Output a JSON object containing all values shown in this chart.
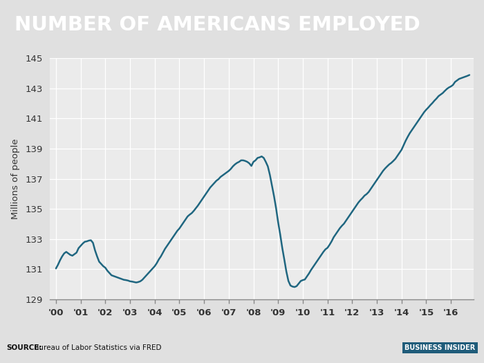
{
  "title": "NUMBER OF AMERICANS EMPLOYED",
  "ylabel": "Millions of people",
  "source_label": "SOURCE:",
  "source_text": " Bureau of Labor Statistics via FRED",
  "watermark": "BUSINESS INSIDER",
  "title_bg_color": "#21708a",
  "title_text_color": "#ffffff",
  "line_color": "#1f6680",
  "bg_color": "#e0e0e0",
  "plot_bg_color": "#ebebeb",
  "footer_bg_color": "#cccccc",
  "grid_color": "#ffffff",
  "xlim": [
    1999.75,
    2016.92
  ],
  "ylim": [
    129,
    145
  ],
  "yticks": [
    129,
    131,
    133,
    135,
    137,
    139,
    141,
    143,
    145
  ],
  "xtick_labels": [
    "'00",
    "'01",
    "'02",
    "'03",
    "'04",
    "'05",
    "'06",
    "'07",
    "'08",
    "'09",
    "'10",
    "'11",
    "'12",
    "'13",
    "'14",
    "'15",
    "'16"
  ],
  "xtick_positions": [
    2000,
    2001,
    2002,
    2003,
    2004,
    2005,
    2006,
    2007,
    2008,
    2009,
    2010,
    2011,
    2012,
    2013,
    2014,
    2015,
    2016
  ],
  "data_x": [
    2000.0,
    2000.083,
    2000.167,
    2000.25,
    2000.333,
    2000.417,
    2000.5,
    2000.583,
    2000.667,
    2000.75,
    2000.833,
    2000.917,
    2001.0,
    2001.083,
    2001.167,
    2001.25,
    2001.333,
    2001.417,
    2001.5,
    2001.583,
    2001.667,
    2001.75,
    2001.833,
    2001.917,
    2002.0,
    2002.083,
    2002.167,
    2002.25,
    2002.333,
    2002.417,
    2002.5,
    2002.583,
    2002.667,
    2002.75,
    2002.833,
    2002.917,
    2003.0,
    2003.083,
    2003.167,
    2003.25,
    2003.333,
    2003.417,
    2003.5,
    2003.583,
    2003.667,
    2003.75,
    2003.833,
    2003.917,
    2004.0,
    2004.083,
    2004.167,
    2004.25,
    2004.333,
    2004.417,
    2004.5,
    2004.583,
    2004.667,
    2004.75,
    2004.833,
    2004.917,
    2005.0,
    2005.083,
    2005.167,
    2005.25,
    2005.333,
    2005.417,
    2005.5,
    2005.583,
    2005.667,
    2005.75,
    2005.833,
    2005.917,
    2006.0,
    2006.083,
    2006.167,
    2006.25,
    2006.333,
    2006.417,
    2006.5,
    2006.583,
    2006.667,
    2006.75,
    2006.833,
    2006.917,
    2007.0,
    2007.083,
    2007.167,
    2007.25,
    2007.333,
    2007.417,
    2007.5,
    2007.583,
    2007.667,
    2007.75,
    2007.833,
    2007.917,
    2008.0,
    2008.083,
    2008.167,
    2008.25,
    2008.333,
    2008.417,
    2008.5,
    2008.583,
    2008.667,
    2008.75,
    2008.833,
    2008.917,
    2009.0,
    2009.083,
    2009.167,
    2009.25,
    2009.333,
    2009.417,
    2009.5,
    2009.583,
    2009.667,
    2009.75,
    2009.833,
    2009.917,
    2010.0,
    2010.083,
    2010.167,
    2010.25,
    2010.333,
    2010.417,
    2010.5,
    2010.583,
    2010.667,
    2010.75,
    2010.833,
    2010.917,
    2011.0,
    2011.083,
    2011.167,
    2011.25,
    2011.333,
    2011.417,
    2011.5,
    2011.583,
    2011.667,
    2011.75,
    2011.833,
    2011.917,
    2012.0,
    2012.083,
    2012.167,
    2012.25,
    2012.333,
    2012.417,
    2012.5,
    2012.583,
    2012.667,
    2012.75,
    2012.833,
    2012.917,
    2013.0,
    2013.083,
    2013.167,
    2013.25,
    2013.333,
    2013.417,
    2013.5,
    2013.583,
    2013.667,
    2013.75,
    2013.833,
    2013.917,
    2014.0,
    2014.083,
    2014.167,
    2014.25,
    2014.333,
    2014.417,
    2014.5,
    2014.583,
    2014.667,
    2014.75,
    2014.833,
    2014.917,
    2015.0,
    2015.083,
    2015.167,
    2015.25,
    2015.333,
    2015.417,
    2015.5,
    2015.583,
    2015.667,
    2015.75,
    2015.833,
    2015.917,
    2016.0,
    2016.083,
    2016.167,
    2016.25,
    2016.333,
    2016.417,
    2016.5,
    2016.583,
    2016.667,
    2016.75
  ],
  "data_y": [
    131.05,
    131.3,
    131.6,
    131.85,
    132.05,
    132.15,
    132.05,
    131.95,
    131.9,
    132.0,
    132.1,
    132.4,
    132.55,
    132.7,
    132.82,
    132.85,
    132.9,
    132.92,
    132.75,
    132.25,
    131.85,
    131.5,
    131.35,
    131.2,
    131.1,
    130.9,
    130.75,
    130.6,
    130.55,
    130.5,
    130.45,
    130.4,
    130.35,
    130.3,
    130.28,
    130.25,
    130.2,
    130.18,
    130.15,
    130.12,
    130.15,
    130.2,
    130.3,
    130.45,
    130.6,
    130.75,
    130.9,
    131.05,
    131.2,
    131.4,
    131.65,
    131.85,
    132.1,
    132.35,
    132.55,
    132.75,
    132.95,
    133.15,
    133.35,
    133.55,
    133.7,
    133.9,
    134.1,
    134.3,
    134.5,
    134.62,
    134.72,
    134.87,
    135.05,
    135.22,
    135.42,
    135.62,
    135.82,
    136.02,
    136.22,
    136.42,
    136.57,
    136.72,
    136.87,
    136.97,
    137.12,
    137.22,
    137.32,
    137.42,
    137.52,
    137.65,
    137.82,
    137.95,
    138.05,
    138.12,
    138.22,
    138.22,
    138.18,
    138.12,
    138.02,
    137.85,
    138.12,
    138.22,
    138.38,
    138.42,
    138.48,
    138.38,
    138.12,
    137.82,
    137.25,
    136.55,
    135.85,
    135.05,
    134.12,
    133.32,
    132.42,
    131.65,
    130.85,
    130.22,
    129.92,
    129.85,
    129.82,
    129.88,
    130.05,
    130.22,
    130.28,
    130.32,
    130.52,
    130.72,
    130.95,
    131.15,
    131.35,
    131.55,
    131.75,
    131.95,
    132.15,
    132.32,
    132.42,
    132.62,
    132.85,
    133.12,
    133.32,
    133.52,
    133.72,
    133.88,
    134.02,
    134.22,
    134.42,
    134.62,
    134.82,
    135.02,
    135.22,
    135.42,
    135.58,
    135.72,
    135.88,
    135.98,
    136.12,
    136.32,
    136.52,
    136.72,
    136.92,
    137.12,
    137.32,
    137.52,
    137.68,
    137.82,
    137.95,
    138.05,
    138.18,
    138.32,
    138.52,
    138.72,
    138.92,
    139.22,
    139.52,
    139.78,
    140.02,
    140.22,
    140.42,
    140.62,
    140.82,
    141.02,
    141.22,
    141.42,
    141.58,
    141.72,
    141.88,
    142.02,
    142.18,
    142.32,
    142.48,
    142.58,
    142.68,
    142.82,
    142.95,
    143.05,
    143.12,
    143.22,
    143.42,
    143.52,
    143.62,
    143.67,
    143.72,
    143.77,
    143.82,
    143.88
  ]
}
